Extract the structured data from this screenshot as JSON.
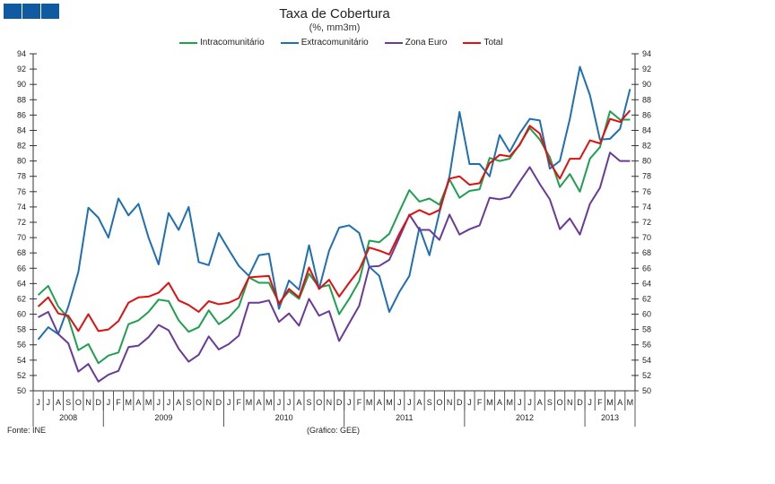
{
  "chart_data": {
    "type": "line",
    "title": "Taxa de Cobertura",
    "subtitle": "(%, mm3m)",
    "source": "Fonte: INE",
    "credit": "(Gráfico: GEE)",
    "ylim": [
      50,
      94
    ],
    "yticks": [
      50,
      52,
      54,
      56,
      58,
      60,
      62,
      64,
      66,
      68,
      70,
      72,
      74,
      76,
      78,
      80,
      82,
      84,
      86,
      88,
      90,
      92,
      94
    ],
    "grid": false,
    "legend_position": "top",
    "months": [
      "J",
      "J",
      "A",
      "S",
      "O",
      "N",
      "D",
      "J",
      "F",
      "M",
      "A",
      "M",
      "J",
      "J",
      "A",
      "S",
      "O",
      "N",
      "D",
      "J",
      "F",
      "M",
      "A",
      "M",
      "J",
      "J",
      "A",
      "S",
      "O",
      "N",
      "D",
      "J",
      "F",
      "M",
      "A",
      "M",
      "J",
      "J",
      "A",
      "S",
      "O",
      "N",
      "D",
      "J",
      "F",
      "M",
      "A",
      "M",
      "J",
      "J",
      "A",
      "S",
      "O",
      "N",
      "D",
      "J",
      "F",
      "M",
      "A",
      "M"
    ],
    "years": [
      {
        "label": "2008",
        "months": 7
      },
      {
        "label": "2009",
        "months": 12
      },
      {
        "label": "2010",
        "months": 12
      },
      {
        "label": "2011",
        "months": 12
      },
      {
        "label": "2012",
        "months": 12
      },
      {
        "label": "2013",
        "months": 5
      }
    ],
    "series": [
      {
        "name": "Intracomunitário",
        "color": "#1fa050",
        "values": [
          62.5,
          63.7,
          61,
          59.5,
          55.3,
          56.1,
          53.6,
          54.6,
          55,
          58.7,
          59.2,
          60.3,
          61.9,
          61.7,
          59.2,
          57.7,
          58.3,
          60.5,
          58.7,
          59.6,
          61,
          64.8,
          64.1,
          64.1,
          61.5,
          63,
          62,
          65.3,
          63.5,
          63.8,
          60,
          62,
          64.3,
          69.6,
          69.4,
          70.5,
          73.4,
          76.2,
          74.7,
          75.1,
          74.3,
          77.6,
          75.2,
          76.1,
          76.3,
          80.4,
          80,
          80.3,
          82.2,
          84.3,
          82.8,
          80.5,
          76.6,
          78.3,
          76,
          80.3,
          81.8,
          86.5,
          85.4,
          85.4
        ]
      },
      {
        "name": "Extracomunitário",
        "color": "#1f6fb5",
        "values": [
          56.7,
          58.3,
          57.4,
          61,
          65.5,
          73.9,
          72.6,
          70,
          75.1,
          72.9,
          74.4,
          70,
          66.5,
          73.2,
          71,
          74,
          66.8,
          66.4,
          70.6,
          68.4,
          66.3,
          65,
          67.7,
          67.9,
          60.7,
          64.4,
          63.2,
          69,
          63.3,
          68.3,
          71.3,
          71.6,
          70.6,
          66.2,
          65,
          60.3,
          62.9,
          65,
          71.3,
          67.7,
          73.3,
          78,
          86.4,
          79.6,
          79.6,
          78,
          83.4,
          81.2,
          83.6,
          85.5,
          85.3,
          79,
          80,
          85.5,
          92.3,
          88.6,
          82.8,
          82.9,
          84.2,
          89.4
        ]
      },
      {
        "name": "Zona Euro",
        "color": "#6a3a9a",
        "values": [
          59.6,
          60.3,
          57.4,
          56.2,
          52.5,
          53.5,
          51.2,
          52.1,
          52.6,
          55.7,
          55.9,
          57,
          58.6,
          57.9,
          55.5,
          53.8,
          54.7,
          57.1,
          55.4,
          56.1,
          57.2,
          61.5,
          61.5,
          61.8,
          59,
          60.1,
          58.5,
          62,
          59.8,
          60.4,
          56.5,
          58.8,
          61.1,
          66.2,
          66.3,
          67.1,
          70,
          73,
          71,
          71,
          69.7,
          73,
          70.4,
          71.1,
          71.6,
          75.2,
          75,
          75.3,
          77.3,
          79.2,
          77,
          75,
          71.1,
          72.5,
          70.4,
          74.4,
          76.5,
          81.1,
          80,
          80
        ]
      },
      {
        "name": "Total",
        "color": "#e01010",
        "values": [
          61,
          62.2,
          60.1,
          59.8,
          57.8,
          60,
          57.8,
          58,
          59.1,
          61.5,
          62.2,
          62.3,
          62.8,
          64.1,
          61.8,
          61.2,
          60.3,
          61.7,
          61.3,
          61.5,
          62.1,
          64.8,
          64.9,
          65,
          61.3,
          63.3,
          62.2,
          66.1,
          63.3,
          64.5,
          62.3,
          64.1,
          65.8,
          68.7,
          68.3,
          67.8,
          70.5,
          72.9,
          73.6,
          73,
          73.6,
          77.7,
          78,
          76.9,
          77.1,
          79.7,
          80.8,
          80.6,
          82.1,
          84.6,
          83.6,
          79.8,
          77.7,
          80.3,
          80.3,
          82.7,
          82.3,
          85.5,
          85.1,
          86.6
        ]
      }
    ]
  }
}
